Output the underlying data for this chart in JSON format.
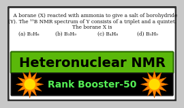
{
  "bg_color": "#ffffff",
  "border_color": "#333333",
  "q_line1": "    A borane (X) reacted with ammonia to give a salt of borohydride",
  "q_line2": "(Y). The ¹¹B NMR spectrum of Y consists of a triplet and a quintet.",
  "q_line3": "The borane X is",
  "opt_a": "(a) B₂H₆",
  "opt_b": "(b) B₃H₉",
  "opt_c": "(c) B₄H₈",
  "opt_d": "(d) B₅H₉",
  "green_banner_text": "Heteronuclear NMR",
  "green_banner_color": "#5ab80a",
  "green_banner_text_color": "#000000",
  "black_banner_text": "Rank Booster-50",
  "black_banner_color": "#000000",
  "black_banner_text_color": "#55ee55",
  "star_outer_color": "#ff8800",
  "star_inner_color": "#ffdd00",
  "outer_bg": "#c8c8c8"
}
